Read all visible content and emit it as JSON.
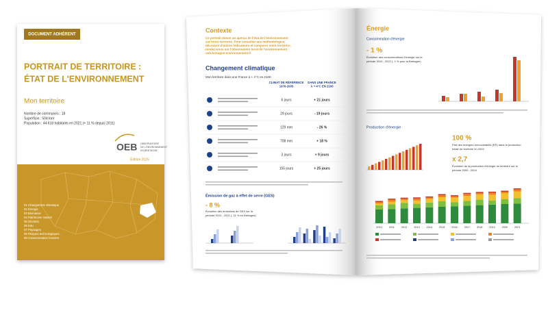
{
  "cover": {
    "badge": "DOCUMENT ADHÉRENT",
    "title": [
      "PORTRAIT DE TERRITOIRE :",
      "ÉTAT DE L'ENVIRONNEMENT"
    ],
    "subtitle": "Mon territoire",
    "stats": [
      "Nombre de communes : 18",
      "Superficie : 504 km²",
      "Population : 44 618 habitants en 2021 (+ 11 % depuis 2011)"
    ],
    "logo": "OEB",
    "logo_caption": [
      "OBSERVATOIRE",
      "DE L'ENVIRONNEMENT",
      "EN BRETAGNE"
    ],
    "edition": "Édition 2025",
    "contents": [
      "01 Changement climatique",
      "02 Énergie",
      "03 Biomasse",
      "04 Patrimoine naturel",
      "05 Déchets",
      "06 Eau",
      "07 Paysages",
      "08 Risques technologiques",
      "09 Consommation foncière"
    ]
  },
  "left_page": {
    "context_title": "Contexte",
    "context_text": [
      "Ce portrait donne un aperçu de l'état de l'environnement",
      "sur votre territoire. Pour consulter ses méthodologies,",
      "découvrir d'autres indicateurs et comparer votre territoire,",
      "rendez-vous sur l'observatoire local de l'environnement :",
      "oeb.bretagne-environnement.fr"
    ],
    "climate_title": "Changement climatique",
    "climate_subtitle": "Mon territoire dans une France à + 4°C en 2100",
    "table_headers": [
      [
        "CLIMAT DE RÉFÉRENCE",
        "1976-2005"
      ],
      [
        "DANS UNE FRANCE",
        "À + 4°C EN 2100"
      ]
    ],
    "table_rows": [
      [
        "6 jours",
        "+ 21 jours"
      ],
      [
        "29 jours",
        "- 19 jours"
      ],
      [
        "129 mm",
        "- 26 %"
      ],
      [
        "708 mm",
        "+ 18 %"
      ],
      [
        "3 jours",
        "+ 9 jours"
      ],
      [
        "155 jours",
        "+ 25 jours"
      ]
    ],
    "ges_title": "Émission de gaz à effet de serre (GES)",
    "ges_value": "- 8 %",
    "ges_text": [
      "Évolution des émissions de GES sur la",
      "période 2010 - 2021 (- 11 % en Bretagne)"
    ]
  },
  "right_page": {
    "energy_title": "Énergie",
    "consumption_title": "Consommation d'énergie",
    "consumption_value": "- 1 %",
    "consumption_text": [
      "Évolution des consommations d'énergie sur la",
      "période 2010 - 2022 (- 1 % pour la Bretagne)"
    ],
    "production_title": "Production d'énergie",
    "renewable_value": "100 %",
    "renewable_text": [
      "Part des énergies renouvelables (ER) dans la production",
      "totale du territoire en 2024"
    ],
    "growth_value": "x 2,7",
    "growth_text": [
      "Évolution de la production d'énergie du territoire sur la",
      "période 2000 - 2024"
    ],
    "years": [
      "2010",
      "2011",
      "2012",
      "2013",
      "2014",
      "2015",
      "2016",
      "2017",
      "2018",
      "2019",
      "2020",
      "2021"
    ]
  }
}
